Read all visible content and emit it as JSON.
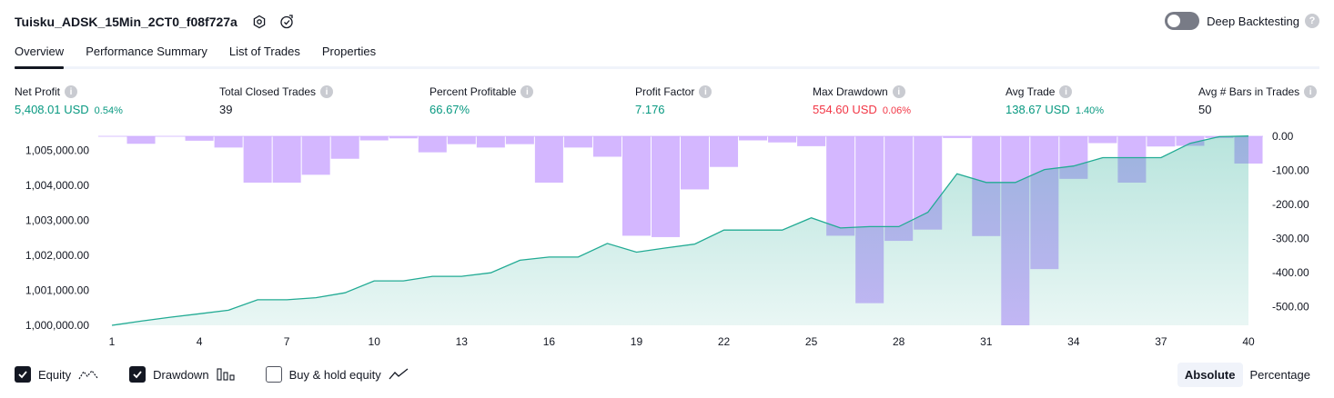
{
  "header": {
    "title": "Tuisku_ADSK_15Min_2CT0_f08f727a",
    "deep_backtesting_label": "Deep Backtesting",
    "help_symbol": "?"
  },
  "tabs": [
    {
      "label": "Overview",
      "active": true
    },
    {
      "label": "Performance Summary",
      "active": false
    },
    {
      "label": "List of Trades",
      "active": false
    },
    {
      "label": "Properties",
      "active": false
    }
  ],
  "metrics": [
    {
      "label": "Net Profit",
      "value": "5,408.01 USD",
      "pct": "0.54%",
      "color": "green"
    },
    {
      "label": "Total Closed Trades",
      "value": "39",
      "pct": "",
      "color": "dark"
    },
    {
      "label": "Percent Profitable",
      "value": "66.67%",
      "pct": "",
      "color": "green"
    },
    {
      "label": "Profit Factor",
      "value": "7.176",
      "pct": "",
      "color": "green"
    },
    {
      "label": "Max Drawdown",
      "value": "554.60 USD",
      "pct": "0.06%",
      "color": "red"
    },
    {
      "label": "Avg Trade",
      "value": "138.67 USD",
      "pct": "1.40%",
      "color": "green"
    },
    {
      "label": "Avg # Bars in Trades",
      "value": "50",
      "pct": "",
      "color": "dark"
    }
  ],
  "legend": {
    "equity_label": "Equity",
    "equity_checked": true,
    "drawdown_label": "Drawdown",
    "drawdown_checked": true,
    "buyhold_label": "Buy & hold equity",
    "buyhold_checked": false
  },
  "mode": {
    "absolute_label": "Absolute",
    "percentage_label": "Percentage",
    "selected": "Absolute"
  },
  "colors": {
    "equity_line": "#22ab94",
    "equity_fill": "#22ab94",
    "drawdown_bar": "#ccaaff",
    "green": "#089981",
    "red": "#f23645"
  },
  "chart_data": {
    "type": "area",
    "x_tick_labels": [
      "1",
      "4",
      "7",
      "10",
      "13",
      "16",
      "19",
      "22",
      "25",
      "28",
      "31",
      "34",
      "37",
      "40"
    ],
    "left_axis": {
      "tick_labels": [
        "1,005,000.00",
        "1,004,000.00",
        "1,003,000.00",
        "1,002,000.00",
        "1,001,000.00",
        "1,000,000.00"
      ],
      "range": [
        1000000,
        1005400
      ]
    },
    "right_axis": {
      "tick_labels": [
        "0.00",
        "-100.00",
        "-200.00",
        "-300.00",
        "-400.00",
        "-500.00"
      ],
      "range": [
        -555,
        0
      ]
    },
    "series": [
      {
        "name": "Equity",
        "x": [
          1,
          2,
          3,
          4,
          5,
          6,
          7,
          8,
          9,
          10,
          11,
          12,
          13,
          14,
          15,
          16,
          17,
          18,
          19,
          20,
          21,
          22,
          23,
          24,
          25,
          26,
          27,
          28,
          29,
          30,
          31,
          32,
          33,
          34,
          35,
          36,
          37,
          38,
          39,
          40
        ],
        "values": [
          1000000,
          1000120,
          1000230,
          1000330,
          1000430,
          1000730,
          1000730,
          1000790,
          1000930,
          1001270,
          1001270,
          1001400,
          1001400,
          1001500,
          1001860,
          1001950,
          1001950,
          1002340,
          1002090,
          1002210,
          1002320,
          1002720,
          1002720,
          1002720,
          1003070,
          1002780,
          1002820,
          1002820,
          1003230,
          1004330,
          1004080,
          1004080,
          1004450,
          1004550,
          1004790,
          1004790,
          1004790,
          1005200,
          1005390,
          1005408
        ]
      },
      {
        "name": "Drawdown",
        "x": [
          1,
          2,
          3,
          4,
          5,
          6,
          7,
          8,
          9,
          10,
          11,
          12,
          13,
          14,
          15,
          16,
          17,
          18,
          19,
          20,
          21,
          22,
          23,
          24,
          25,
          26,
          27,
          28,
          29,
          30,
          31,
          32,
          33,
          34,
          35,
          36,
          37,
          38,
          39,
          40
        ],
        "values": [
          0,
          -22,
          0,
          -13,
          -33,
          -136,
          -136,
          -113,
          -66,
          -12,
          -6,
          -47,
          -23,
          -33,
          -23,
          -136,
          -33,
          -60,
          -292,
          -296,
          -156,
          -90,
          -12,
          -18,
          -29,
          -292,
          -490,
          -307,
          -274,
          -5,
          -293,
          -555,
          -390,
          -125,
          -20,
          -136,
          -30,
          -28,
          -5,
          -80
        ]
      }
    ]
  }
}
